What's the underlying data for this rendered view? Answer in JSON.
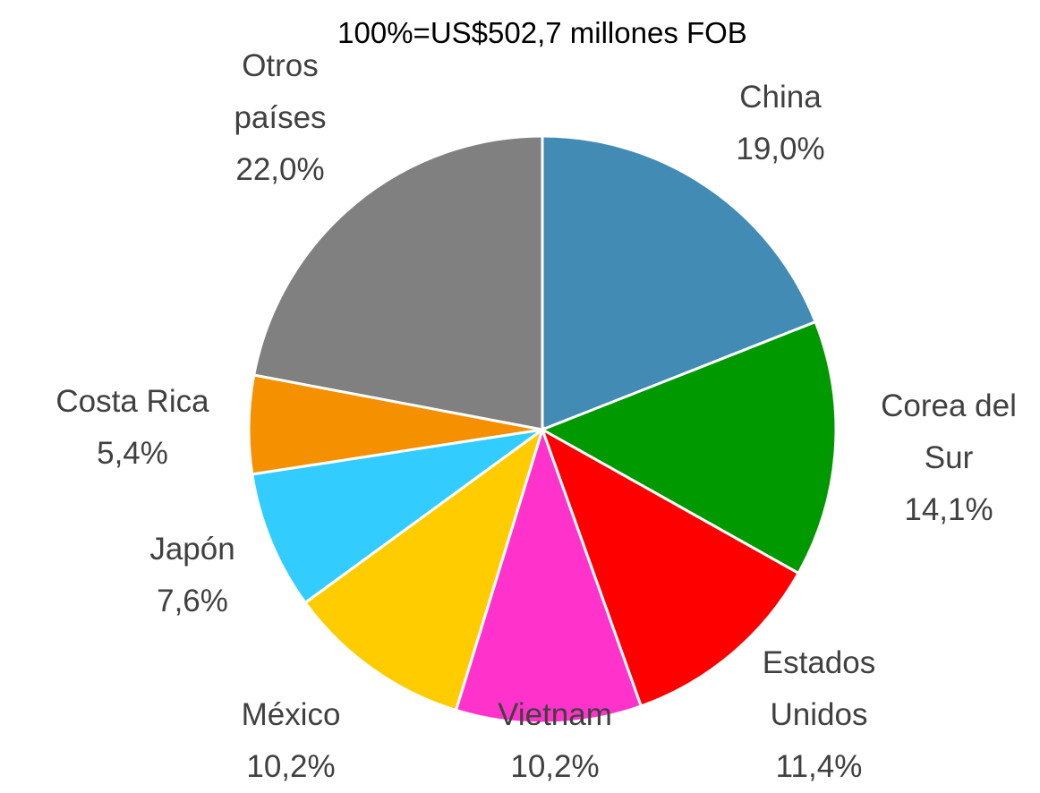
{
  "chart_data": {
    "type": "pie",
    "subtitle": "100%=US$502,7 millones FOB",
    "categories": [
      "China",
      "Corea del Sur",
      "Estados Unidos",
      "Vietnam",
      "México",
      "Japón",
      "Costa Rica",
      "Otros países"
    ],
    "values": [
      19.0,
      14.1,
      11.4,
      10.2,
      10.2,
      7.6,
      5.4,
      22.0
    ],
    "value_labels": [
      "19,0%",
      "14,1%",
      "11,4%",
      "10,2%",
      "10,2%",
      "7,6%",
      "5,4%",
      "22,0%"
    ],
    "colors": [
      "#428bb5",
      "#009900",
      "#ff0000",
      "#ff33cc",
      "#ffcc00",
      "#33ccff",
      "#f59100",
      "#808080"
    ]
  }
}
